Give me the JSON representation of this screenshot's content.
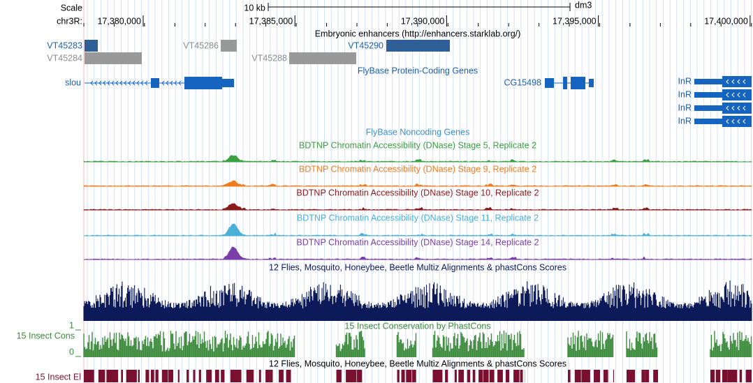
{
  "ruler": {
    "scale": "Scale",
    "scale_bar": "10 kb",
    "assembly": "dm3",
    "chromosome": "chr3R:",
    "positions": [
      "17,380,000",
      "17,385,000",
      "17,390,000",
      "17,395,000",
      "17,400,000"
    ]
  },
  "enhancers": {
    "title": "Embryonic enhancers (http://enhancers.starklab.org/)",
    "items": [
      "VT45283",
      "VT45286",
      "VT45290",
      "VT45284",
      "VT45288"
    ]
  },
  "protein_genes": {
    "title": "FlyBase Protein-Coding Genes",
    "items": [
      "slou",
      "CG15498",
      "InR",
      "InR",
      "InR",
      "InR"
    ]
  },
  "noncoding_genes": {
    "title": "FlyBase Noncoding Genes"
  },
  "dnase_tracks": [
    "BDTNP Chromatin Accessibility (DNase) Stage 5, Replicate 2",
    "BDTNP Chromatin Accessibility (DNase) Stage 9, Replicate 2",
    "BDTNP Chromatin Accessibility (DNase) Stage 10, Replicate 2",
    "BDTNP Chromatin Accessibility (DNase) Stage 11, Replicate 2",
    "BDTNP Chromatin Accessibility (DNase) Stage 14, Replicate 2"
  ],
  "multiz": {
    "title": "12 Flies, Mosquito, Honeybee, Beetle Multiz Alignments & phastCons Scores"
  },
  "conservation": {
    "title": "15 Insect Conservation by PhastCons",
    "label": "15 Insect Cons",
    "max": "1",
    "min": "0"
  },
  "elements": {
    "title": "12 Flies, Mosquito, Honeybee, Beetle Multiz Alignments & phastCons Scores",
    "label": "15 Insect El"
  }
}
